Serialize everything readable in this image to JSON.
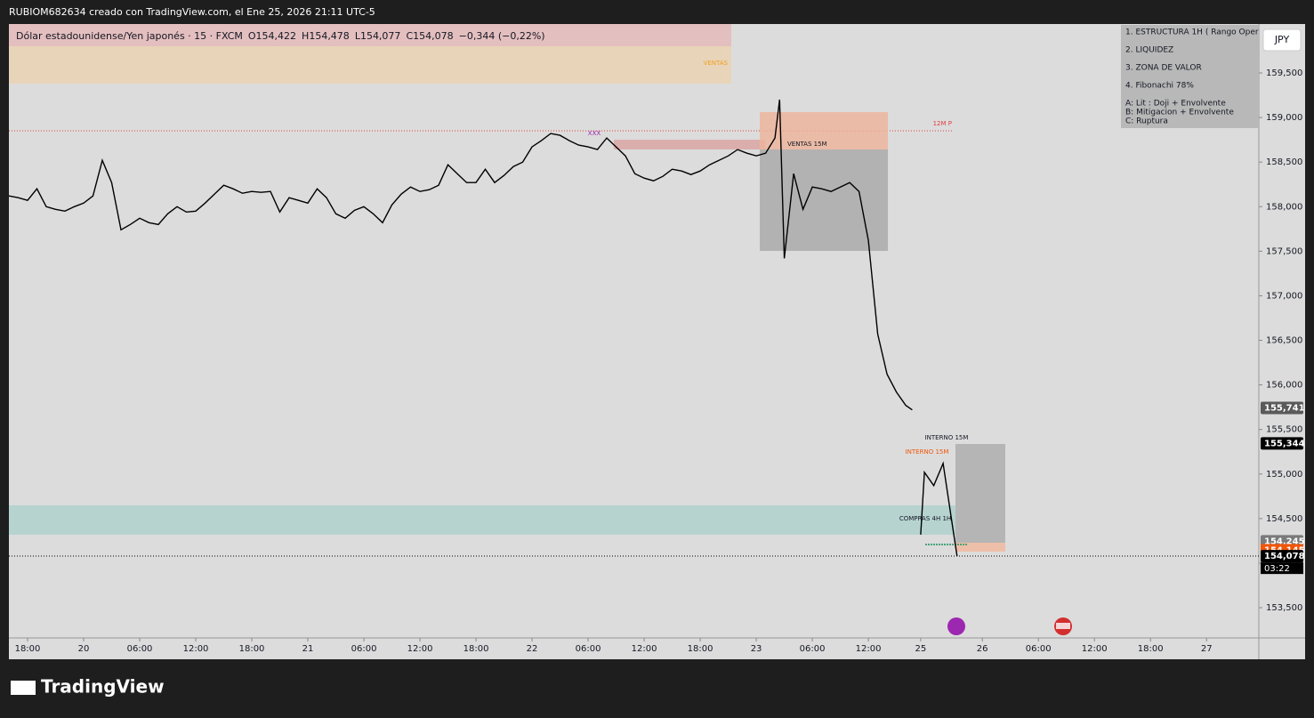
{
  "header": {
    "credit": "RUBIOM682634 creado con TradingView.com, el Ene 25, 2026 21:11 UTC-5",
    "logo": "TradingView",
    "currency_button": "JPY"
  },
  "chart_data": {
    "type": "line",
    "series": [
      {
        "name": "Dólar estadounidense/Yen japonés · 15 · FXCM",
        "color": "#000000",
        "x": [
          0,
          1,
          2,
          3,
          4,
          5,
          6,
          7,
          8,
          9,
          10,
          11,
          12,
          13,
          14,
          15,
          16,
          17,
          18,
          19,
          20,
          21,
          22,
          23,
          24,
          25,
          26,
          27,
          28,
          29,
          30,
          31,
          32,
          33,
          34,
          35,
          36,
          37,
          38,
          39,
          40,
          41,
          42,
          43,
          44,
          45,
          46,
          47,
          48,
          49,
          50,
          51,
          52,
          53,
          54,
          55,
          56,
          57,
          58,
          59,
          60,
          61,
          62,
          63,
          64,
          65,
          66,
          67,
          68,
          69,
          70,
          71,
          72,
          73,
          74,
          75,
          76,
          77,
          78,
          79,
          80,
          81,
          82,
          82.5,
          83,
          84,
          85,
          86,
          87,
          88,
          89,
          90,
          91,
          92,
          93,
          94,
          95,
          96,
          96.7,
          97.2,
          97.6,
          98,
          99,
          100,
          101,
          101.5
        ],
        "values": [
          158120,
          158100,
          158070,
          158200,
          158000,
          157970,
          157950,
          158000,
          158040,
          158120,
          158520,
          158270,
          157740,
          157800,
          157870,
          157820,
          157800,
          157920,
          158000,
          157940,
          157950,
          158040,
          158140,
          158240,
          158200,
          158150,
          158170,
          158160,
          158170,
          157940,
          158100,
          158070,
          158040,
          158200,
          158100,
          157920,
          157870,
          157960,
          158000,
          157920,
          157820,
          158020,
          158140,
          158220,
          158170,
          158190,
          158240,
          158470,
          158370,
          158270,
          158270,
          158420,
          158270,
          158350,
          158450,
          158500,
          158670,
          158740,
          158820,
          158800,
          158740,
          158690,
          158670,
          158640,
          158770,
          158670,
          158570,
          158370,
          158320,
          158290,
          158340,
          158420,
          158400,
          158360,
          158400,
          158470,
          158520,
          158570,
          158640,
          158600,
          158570,
          158600,
          158770,
          159200,
          157420,
          158370,
          157970,
          158220,
          158200,
          158170,
          158220,
          158270,
          158170,
          157620,
          156570,
          156120,
          155920,
          155770,
          155720,
          null,
          154320,
          155020,
          154870,
          155120,
          154420,
          154078
        ]
      }
    ],
    "legend_stats": [
      "O154,422",
      "H154,478",
      "L154,077",
      "C154,078",
      "−0,344 (−0,22%)"
    ],
    "ylim": [
      153161,
      160049
    ],
    "yticks": [
      {
        "value": 153500,
        "label": "153,500"
      },
      {
        "value": 154000,
        "label": "154,000"
      },
      {
        "value": 154500,
        "label": "154,500"
      },
      {
        "value": 155000,
        "label": "155,000"
      },
      {
        "value": 155500,
        "label": "155,500"
      },
      {
        "value": 156000,
        "label": "156,000"
      },
      {
        "value": 156500,
        "label": "156,500"
      },
      {
        "value": 157000,
        "label": "157,000"
      },
      {
        "value": 157500,
        "label": "157,500"
      },
      {
        "value": 158000,
        "label": "158,000"
      },
      {
        "value": 158500,
        "label": "158,500"
      },
      {
        "value": 159000,
        "label": "159,000"
      },
      {
        "value": 159500,
        "label": "159,500"
      }
    ],
    "xlim": [
      0,
      133.8
    ],
    "xticks": [
      {
        "value": 2,
        "label": "18:00"
      },
      {
        "value": 8,
        "label": "20"
      },
      {
        "value": 14,
        "label": "06:00"
      },
      {
        "value": 20,
        "label": "12:00"
      },
      {
        "value": 26,
        "label": "18:00"
      },
      {
        "value": 32,
        "label": "21"
      },
      {
        "value": 38,
        "label": "06:00"
      },
      {
        "value": 44,
        "label": "12:00"
      },
      {
        "value": 50,
        "label": "18:00"
      },
      {
        "value": 56,
        "label": "22"
      },
      {
        "value": 62,
        "label": "06:00"
      },
      {
        "value": 68,
        "label": "12:00"
      },
      {
        "value": 74,
        "label": "18:00"
      },
      {
        "value": 80,
        "label": "23"
      },
      {
        "value": 86,
        "label": "06:00"
      },
      {
        "value": 92,
        "label": "12:00"
      },
      {
        "value": 97.6,
        "label": "25"
      },
      {
        "value": 104.2,
        "label": "26"
      },
      {
        "value": 110.2,
        "label": "06:00"
      },
      {
        "value": 116.2,
        "label": "12:00"
      },
      {
        "value": 122.2,
        "label": "18:00"
      },
      {
        "value": 128.2,
        "label": "27"
      }
    ],
    "price_labels": [
      {
        "value": 155741,
        "label": "155,741",
        "color": "#5a5a5a"
      },
      {
        "value": 155344,
        "label": "155,344",
        "color": "#000000"
      },
      {
        "value": 154245,
        "label": "154,245",
        "color": "#7a7a7a"
      },
      {
        "value": 154145,
        "label": "154,145",
        "color": "#f0560a"
      },
      {
        "value": 154078,
        "label": "154,078",
        "color": "#000000"
      }
    ],
    "countdown": "03:22",
    "annotations": [
      "VENTAS",
      "12M P",
      "XXX",
      "VENTAS 15M",
      "INTERNO 15M",
      "INTERNO 15M",
      "COMPRAS 4H 1H"
    ],
    "notes": [
      "1. ESTRUCTURA 1H ( Rango Oper",
      "2. LIQUIDEZ",
      "3. ZONA DE VALOR",
      "4. Fibonachi 78%",
      "A: Lit : Doji + Envolvente",
      "B: Mitigacion + Envolvente",
      "C: Ruptura"
    ]
  }
}
